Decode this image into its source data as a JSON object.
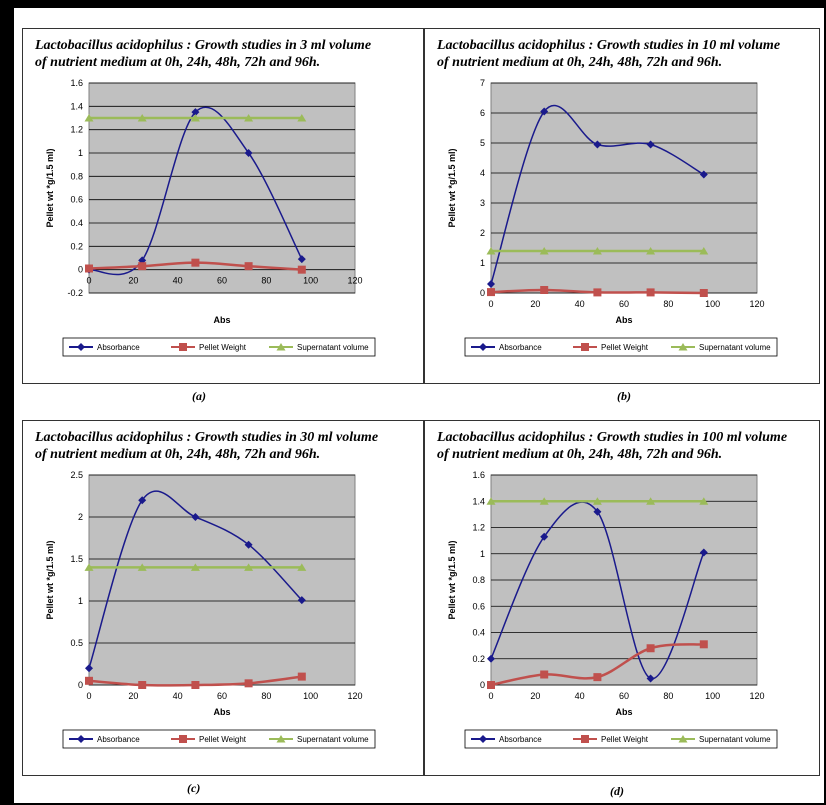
{
  "chart_data": [
    {
      "id": "a",
      "type": "line",
      "title_lines": [
        "Lactobacillus acidophilus : Growth studies in 3 ml volume",
        "of nutrient medium at 0h, 24h, 48h, 72h and 96h."
      ],
      "xlabel": "Abs",
      "ylabel": "Pellet wt *g/1.5 ml)",
      "xlim": [
        0,
        120
      ],
      "x_ticks": [
        0,
        20,
        40,
        60,
        80,
        100,
        120
      ],
      "ylim": [
        -0.2,
        1.6
      ],
      "y_ticks": [
        -0.2,
        0,
        0.2,
        0.4,
        0.6,
        0.8,
        1,
        1.2,
        1.4,
        1.6
      ],
      "x": [
        0,
        24,
        48,
        72,
        96
      ],
      "series": [
        {
          "name": "Absorbance",
          "values": [
            0,
            0.08,
            1.35,
            1.0,
            0.09
          ]
        },
        {
          "name": "Pellet Weight",
          "values": [
            0.01,
            0.03,
            0.06,
            0.03,
            0.0
          ]
        },
        {
          "name": "Supernatant volume",
          "values": [
            1.3,
            1.3,
            1.3,
            1.3,
            1.3
          ]
        }
      ],
      "caption": "(a)"
    },
    {
      "id": "b",
      "type": "line",
      "title_lines": [
        "Lactobacillus acidophilus : Growth studies in 10 ml volume",
        "of nutrient medium at 0h, 24h, 48h, 72h and 96h."
      ],
      "xlabel": "Abs",
      "ylabel": "Pellet wt *g/1.5 ml)",
      "xlim": [
        0,
        120
      ],
      "x_ticks": [
        0,
        20,
        40,
        60,
        80,
        100,
        120
      ],
      "ylim": [
        0,
        7
      ],
      "y_ticks": [
        0,
        1,
        2,
        3,
        4,
        5,
        6,
        7
      ],
      "x": [
        0,
        24,
        48,
        72,
        96
      ],
      "series": [
        {
          "name": "Absorbance",
          "values": [
            0.3,
            6.05,
            4.95,
            4.95,
            3.95
          ]
        },
        {
          "name": "Pellet Weight",
          "values": [
            0.03,
            0.1,
            0.02,
            0.02,
            0.0
          ]
        },
        {
          "name": "Supernatant volume",
          "values": [
            1.4,
            1.4,
            1.4,
            1.4,
            1.4
          ]
        }
      ],
      "caption": "(b)"
    },
    {
      "id": "c",
      "type": "line",
      "title_lines": [
        "Lactobacillus acidophilus : Growth studies in 30 ml volume",
        "of nutrient medium at 0h, 24h, 48h, 72h and 96h."
      ],
      "xlabel": "Abs",
      "ylabel": "Pellet wt *g/1.5 ml)",
      "xlim": [
        0,
        120
      ],
      "x_ticks": [
        0,
        20,
        40,
        60,
        80,
        100,
        120
      ],
      "ylim": [
        0,
        2.5
      ],
      "y_ticks": [
        0,
        0.5,
        1,
        1.5,
        2,
        2.5
      ],
      "x": [
        0,
        24,
        48,
        72,
        96
      ],
      "series": [
        {
          "name": "Absorbance",
          "values": [
            0.2,
            2.2,
            2.0,
            1.67,
            1.01
          ]
        },
        {
          "name": "Pellet Weight",
          "values": [
            0.05,
            0.0,
            0.0,
            0.02,
            0.1
          ]
        },
        {
          "name": "Supernatant volume",
          "values": [
            1.4,
            1.4,
            1.4,
            1.4,
            1.4
          ]
        }
      ],
      "caption": "(c)"
    },
    {
      "id": "d",
      "type": "line",
      "title_lines": [
        "Lactobacillus acidophilus : Growth studies in 100 ml volume",
        "of nutrient medium at 0h, 24h, 48h, 72h and 96h."
      ],
      "xlabel": "Abs",
      "ylabel": "Pellet wt *g/1.5 ml)",
      "xlim": [
        0,
        120
      ],
      "x_ticks": [
        0,
        20,
        40,
        60,
        80,
        100,
        120
      ],
      "ylim": [
        0,
        1.6
      ],
      "y_ticks": [
        0,
        0.2,
        0.4,
        0.6,
        0.8,
        1,
        1.2,
        1.4,
        1.6
      ],
      "x": [
        0,
        24,
        48,
        72,
        96
      ],
      "series": [
        {
          "name": "Absorbance",
          "values": [
            0.2,
            1.13,
            1.32,
            0.05,
            1.01
          ]
        },
        {
          "name": "Pellet Weight",
          "values": [
            0.0,
            0.08,
            0.06,
            0.28,
            0.31
          ]
        },
        {
          "name": "Supernatant volume",
          "values": [
            1.4,
            1.4,
            1.4,
            1.4,
            1.4
          ]
        }
      ],
      "caption": "(d)"
    }
  ],
  "legend_labels": [
    "Absorbance",
    "Pellet Weight",
    "Supernatant volume"
  ],
  "colors": {
    "absorbance": "#1a1a8c",
    "pellet": "#c0504d",
    "supernatant": "#9bbb59",
    "plot_bg": "#c0c0c0"
  }
}
